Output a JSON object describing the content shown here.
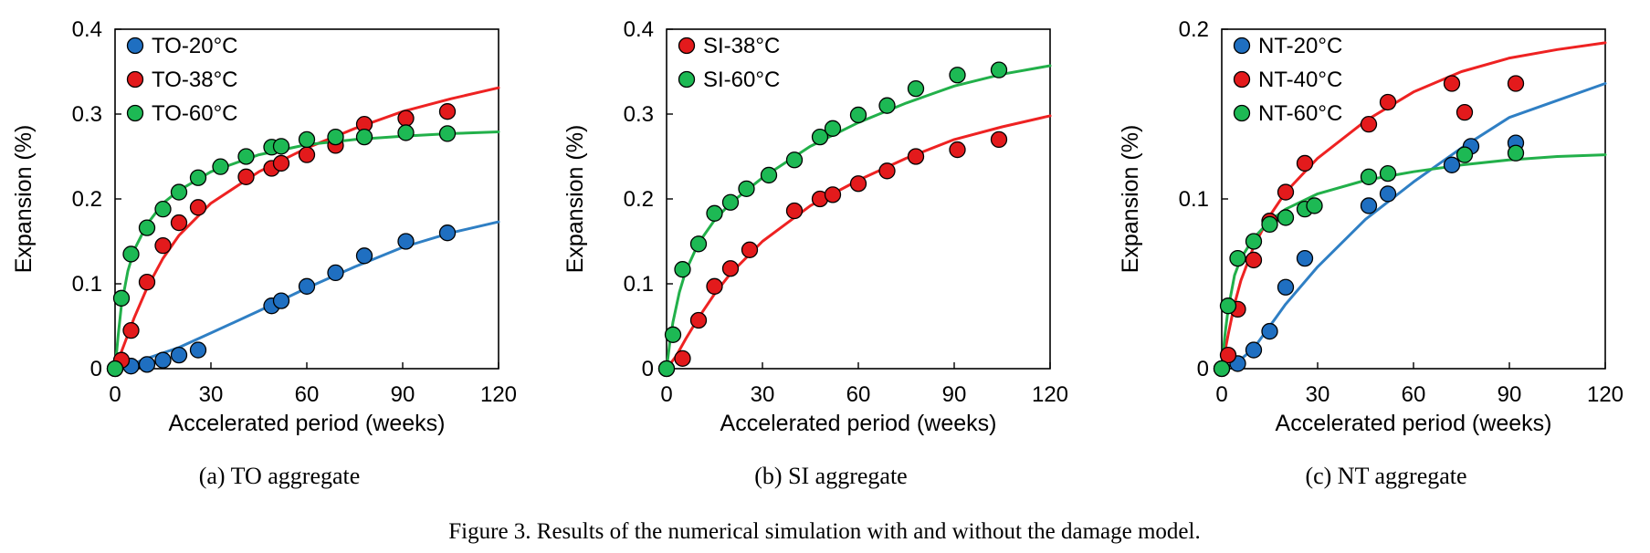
{
  "figure_caption": "Figure 3. Results of the numerical simulation with and without the damage model.",
  "colors": {
    "blue_marker": "#1f6fc1",
    "red_marker": "#e31a1c",
    "green_marker": "#1db954",
    "blue_line": "#2f7fc4",
    "red_line": "#ee2222",
    "green_line": "#22b04a"
  },
  "chart_data": [
    {
      "type": "scatter",
      "caption": "(a) TO aggregate",
      "xlabel": "Accelerated period (weeks)",
      "ylabel": "Expansion (%)",
      "xlim": [
        0,
        120
      ],
      "ylim": [
        0,
        0.4
      ],
      "xticks": [
        0,
        30,
        60,
        90,
        120
      ],
      "yticks": [
        0,
        0.1,
        0.2,
        0.3,
        0.4
      ],
      "xtick_labels": [
        "0",
        "30",
        "60",
        "90",
        "120"
      ],
      "ytick_labels": [
        "0",
        "0.1",
        "0.2",
        "0.3",
        "0.4"
      ],
      "grid": false,
      "legend": "top-left",
      "series": [
        {
          "name": "TO-20°C",
          "color": "blue",
          "points": [
            [
              0,
              0
            ],
            [
              5,
              0.003
            ],
            [
              10,
              0.005
            ],
            [
              15,
              0.01
            ],
            [
              20,
              0.016
            ],
            [
              26,
              0.022
            ],
            [
              49,
              0.074
            ],
            [
              52,
              0.08
            ],
            [
              60,
              0.097
            ],
            [
              69,
              0.113
            ],
            [
              78,
              0.133
            ],
            [
              91,
              0.15
            ],
            [
              104,
              0.16
            ]
          ],
          "fit": [
            [
              0,
              0
            ],
            [
              5,
              0.005
            ],
            [
              10,
              0.012
            ],
            [
              20,
              0.025
            ],
            [
              30,
              0.042
            ],
            [
              45,
              0.068
            ],
            [
              60,
              0.095
            ],
            [
              75,
              0.12
            ],
            [
              90,
              0.143
            ],
            [
              105,
              0.16
            ],
            [
              120,
              0.173
            ]
          ]
        },
        {
          "name": "TO-38°C",
          "color": "red",
          "points": [
            [
              2,
              0.01
            ],
            [
              5,
              0.045
            ],
            [
              10,
              0.102
            ],
            [
              15,
              0.145
            ],
            [
              20,
              0.172
            ],
            [
              26,
              0.19
            ],
            [
              41,
              0.226
            ],
            [
              49,
              0.236
            ],
            [
              52,
              0.242
            ],
            [
              60,
              0.252
            ],
            [
              69,
              0.263
            ],
            [
              78,
              0.288
            ],
            [
              91,
              0.295
            ],
            [
              104,
              0.303
            ]
          ],
          "fit": [
            [
              0,
              0
            ],
            [
              3,
              0.03
            ],
            [
              6,
              0.06
            ],
            [
              10,
              0.095
            ],
            [
              15,
              0.13
            ],
            [
              20,
              0.157
            ],
            [
              30,
              0.195
            ],
            [
              45,
              0.232
            ],
            [
              60,
              0.26
            ],
            [
              75,
              0.283
            ],
            [
              90,
              0.303
            ],
            [
              105,
              0.318
            ],
            [
              120,
              0.331
            ]
          ]
        },
        {
          "name": "TO-60°C",
          "color": "green",
          "points": [
            [
              0,
              0
            ],
            [
              2,
              0.083
            ],
            [
              5,
              0.135
            ],
            [
              10,
              0.166
            ],
            [
              15,
              0.188
            ],
            [
              20,
              0.208
            ],
            [
              26,
              0.225
            ],
            [
              33,
              0.238
            ],
            [
              41,
              0.25
            ],
            [
              49,
              0.261
            ],
            [
              52,
              0.262
            ],
            [
              60,
              0.27
            ],
            [
              69,
              0.273
            ],
            [
              78,
              0.273
            ],
            [
              91,
              0.278
            ],
            [
              104,
              0.277
            ]
          ],
          "fit": [
            [
              0,
              0
            ],
            [
              1,
              0.04
            ],
            [
              2,
              0.075
            ],
            [
              4,
              0.115
            ],
            [
              6,
              0.14
            ],
            [
              10,
              0.17
            ],
            [
              15,
              0.195
            ],
            [
              20,
              0.21
            ],
            [
              30,
              0.232
            ],
            [
              45,
              0.252
            ],
            [
              60,
              0.264
            ],
            [
              75,
              0.27
            ],
            [
              90,
              0.274
            ],
            [
              105,
              0.277
            ],
            [
              120,
              0.279
            ]
          ]
        }
      ]
    },
    {
      "type": "scatter",
      "caption": "(b) SI aggregate",
      "xlabel": "Accelerated period (weeks)",
      "ylabel": "Expansion (%)",
      "xlim": [
        0,
        120
      ],
      "ylim": [
        0,
        0.4
      ],
      "xticks": [
        0,
        30,
        60,
        90,
        120
      ],
      "yticks": [
        0,
        0.1,
        0.2,
        0.3,
        0.4
      ],
      "xtick_labels": [
        "0",
        "30",
        "60",
        "90",
        "120"
      ],
      "ytick_labels": [
        "0",
        "0.1",
        "0.2",
        "0.3",
        "0.4"
      ],
      "grid": false,
      "legend": "top-left",
      "series": [
        {
          "name": "SI-38°C",
          "color": "red",
          "points": [
            [
              0,
              0
            ],
            [
              5,
              0.012
            ],
            [
              10,
              0.057
            ],
            [
              15,
              0.097
            ],
            [
              20,
              0.118
            ],
            [
              26,
              0.14
            ],
            [
              40,
              0.186
            ],
            [
              48,
              0.2
            ],
            [
              52,
              0.205
            ],
            [
              60,
              0.218
            ],
            [
              69,
              0.233
            ],
            [
              78,
              0.25
            ],
            [
              91,
              0.258
            ],
            [
              104,
              0.27
            ]
          ],
          "fit": [
            [
              0,
              0
            ],
            [
              3,
              0.015
            ],
            [
              6,
              0.035
            ],
            [
              10,
              0.06
            ],
            [
              15,
              0.088
            ],
            [
              20,
              0.112
            ],
            [
              30,
              0.15
            ],
            [
              45,
              0.192
            ],
            [
              60,
              0.222
            ],
            [
              75,
              0.248
            ],
            [
              90,
              0.27
            ],
            [
              105,
              0.285
            ],
            [
              120,
              0.298
            ]
          ]
        },
        {
          "name": "SI-60°C",
          "color": "green",
          "points": [
            [
              0,
              0
            ],
            [
              2,
              0.04
            ],
            [
              5,
              0.117
            ],
            [
              10,
              0.147
            ],
            [
              15,
              0.183
            ],
            [
              20,
              0.196
            ],
            [
              25,
              0.212
            ],
            [
              32,
              0.228
            ],
            [
              40,
              0.246
            ],
            [
              48,
              0.273
            ],
            [
              52,
              0.283
            ],
            [
              60,
              0.299
            ],
            [
              69,
              0.31
            ],
            [
              78,
              0.33
            ],
            [
              91,
              0.346
            ],
            [
              104,
              0.352
            ]
          ],
          "fit": [
            [
              0,
              0
            ],
            [
              1,
              0.03
            ],
            [
              2,
              0.055
            ],
            [
              4,
              0.09
            ],
            [
              6,
              0.115
            ],
            [
              10,
              0.148
            ],
            [
              15,
              0.175
            ],
            [
              20,
              0.195
            ],
            [
              30,
              0.225
            ],
            [
              45,
              0.262
            ],
            [
              60,
              0.29
            ],
            [
              75,
              0.313
            ],
            [
              90,
              0.333
            ],
            [
              105,
              0.347
            ],
            [
              120,
              0.357
            ]
          ]
        }
      ]
    },
    {
      "type": "scatter",
      "caption": "(c) NT aggregate",
      "xlabel": "Accelerated period (weeks)",
      "ylabel": "Expansion (%)",
      "xlim": [
        0,
        120
      ],
      "ylim": [
        0,
        0.2
      ],
      "xticks": [
        0,
        30,
        60,
        90,
        120
      ],
      "yticks": [
        0,
        0.1,
        0.2
      ],
      "xtick_labels": [
        "0",
        "30",
        "60",
        "90",
        "120"
      ],
      "ytick_labels": [
        "0",
        "0.1",
        "0.2"
      ],
      "grid": false,
      "legend": "top-left",
      "series": [
        {
          "name": "NT-20°C",
          "color": "blue",
          "points": [
            [
              0,
              0
            ],
            [
              5,
              0.003
            ],
            [
              10,
              0.011
            ],
            [
              15,
              0.022
            ],
            [
              20,
              0.048
            ],
            [
              26,
              0.065
            ],
            [
              46,
              0.096
            ],
            [
              52,
              0.103
            ],
            [
              72,
              0.12
            ],
            [
              78,
              0.131
            ],
            [
              92,
              0.133
            ]
          ],
          "fit": [
            [
              0,
              0
            ],
            [
              5,
              0.004
            ],
            [
              10,
              0.012
            ],
            [
              15,
              0.025
            ],
            [
              20,
              0.038
            ],
            [
              30,
              0.06
            ],
            [
              45,
              0.088
            ],
            [
              60,
              0.11
            ],
            [
              75,
              0.13
            ],
            [
              90,
              0.148
            ],
            [
              105,
              0.158
            ],
            [
              120,
              0.168
            ]
          ]
        },
        {
          "name": "NT-40°C",
          "color": "red",
          "points": [
            [
              2,
              0.008
            ],
            [
              5,
              0.035
            ],
            [
              10,
              0.064
            ],
            [
              15,
              0.087
            ],
            [
              20,
              0.104
            ],
            [
              26,
              0.121
            ],
            [
              46,
              0.144
            ],
            [
              52,
              0.157
            ],
            [
              72,
              0.168
            ],
            [
              76,
              0.151
            ],
            [
              92,
              0.168
            ]
          ],
          "fit": [
            [
              0,
              0
            ],
            [
              2,
              0.02
            ],
            [
              4,
              0.038
            ],
            [
              6,
              0.052
            ],
            [
              10,
              0.072
            ],
            [
              15,
              0.09
            ],
            [
              20,
              0.104
            ],
            [
              30,
              0.124
            ],
            [
              45,
              0.146
            ],
            [
              60,
              0.163
            ],
            [
              75,
              0.175
            ],
            [
              90,
              0.183
            ],
            [
              105,
              0.188
            ],
            [
              120,
              0.192
            ]
          ]
        },
        {
          "name": "NT-60°C",
          "color": "green",
          "points": [
            [
              0,
              0
            ],
            [
              2,
              0.037
            ],
            [
              5,
              0.065
            ],
            [
              10,
              0.075
            ],
            [
              15,
              0.085
            ],
            [
              20,
              0.089
            ],
            [
              26,
              0.094
            ],
            [
              29,
              0.096
            ],
            [
              46,
              0.113
            ],
            [
              52,
              0.115
            ],
            [
              76,
              0.126
            ],
            [
              92,
              0.127
            ]
          ],
          "fit": [
            [
              0,
              0
            ],
            [
              1,
              0.02
            ],
            [
              2,
              0.035
            ],
            [
              4,
              0.055
            ],
            [
              6,
              0.065
            ],
            [
              10,
              0.077
            ],
            [
              15,
              0.087
            ],
            [
              20,
              0.094
            ],
            [
              30,
              0.103
            ],
            [
              45,
              0.111
            ],
            [
              60,
              0.116
            ],
            [
              75,
              0.12
            ],
            [
              90,
              0.123
            ],
            [
              105,
              0.125
            ],
            [
              120,
              0.126
            ]
          ]
        }
      ]
    }
  ]
}
